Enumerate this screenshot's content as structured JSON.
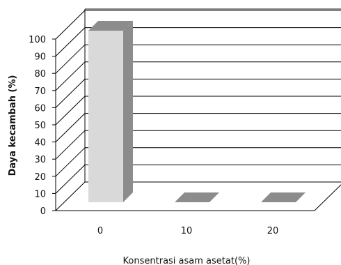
{
  "chart_data": {
    "type": "bar",
    "categories": [
      "0",
      "10",
      "20"
    ],
    "values": [
      100,
      0,
      0
    ],
    "xlabel": "Konsentrasi asam asetat(%)",
    "ylabel": "Daya kecambah (%)",
    "ylim": [
      0,
      100
    ],
    "yticks": [
      "0",
      "10",
      "20",
      "30",
      "40",
      "50",
      "60",
      "70",
      "80",
      "90",
      "100"
    ],
    "grid": true,
    "three_d": true,
    "colors": {
      "bar_front": "#d9d9d9",
      "bar_side": "#8c8c8c",
      "bar_top": "#8c8c8c",
      "grid": "#000000"
    }
  }
}
